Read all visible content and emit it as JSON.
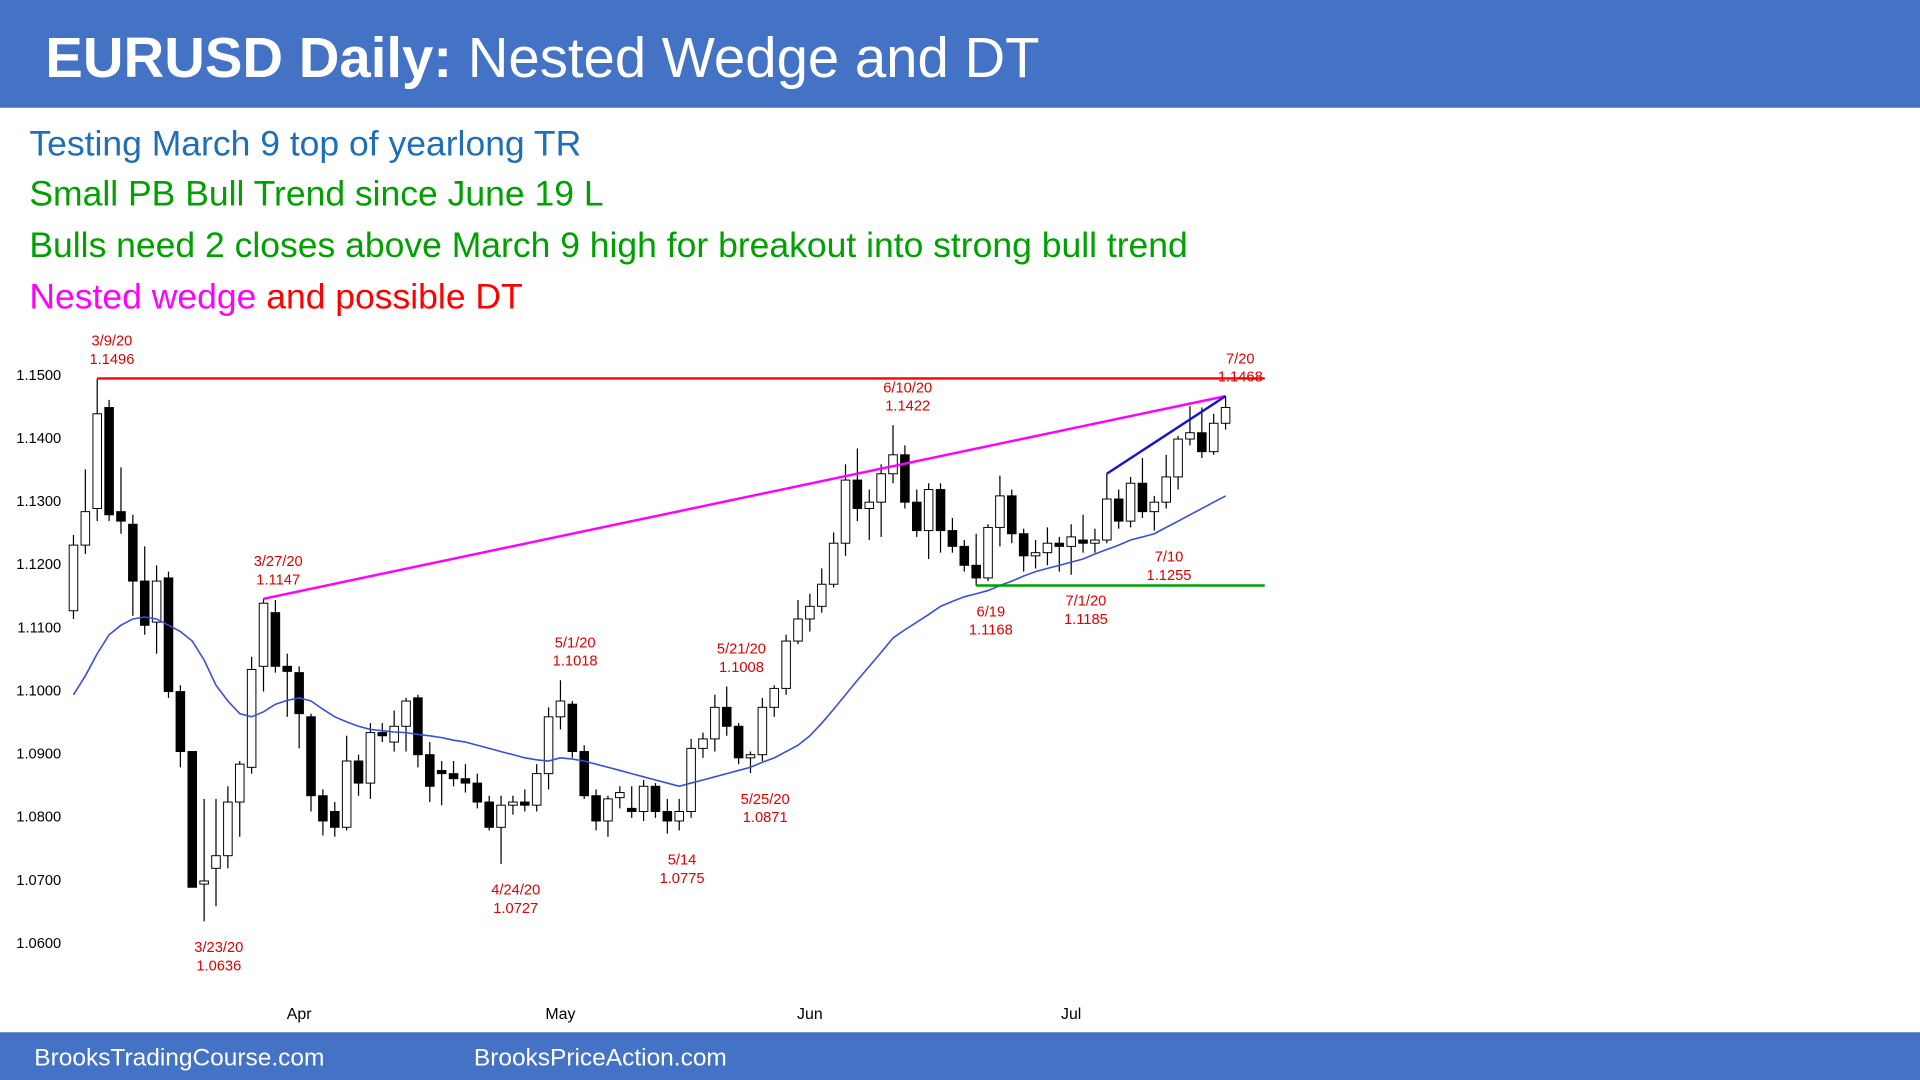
{
  "header": {
    "title_bold": "EURUSD Daily:",
    "title": "Nested Wedge and DT"
  },
  "notes": [
    "Testing March 9 top of yearlong TR",
    "Small PB Bull Trend since June 19 L",
    "Bulls need 2 closes above March 9 high for breakout into strong bull trend",
    {
      "part1": "Nested wedge",
      "part2": "and possible DT"
    }
  ],
  "footer": [
    "BrooksTradingCourse.com",
    "BrooksPriceAction.com"
  ],
  "chart_data": {
    "type": "candlestick",
    "categories": [
      null,
      null,
      null,
      null,
      null,
      null,
      null,
      null,
      null,
      null,
      null,
      null,
      null,
      null,
      null,
      null,
      null,
      null,
      null,
      "Apr",
      null,
      null,
      null,
      null,
      null,
      null,
      null,
      null,
      null,
      null,
      null,
      null,
      null,
      null,
      null,
      null,
      null,
      null,
      null,
      null,
      null,
      "May",
      null,
      null,
      null,
      null,
      null,
      null,
      null,
      null,
      null,
      null,
      null,
      null,
      null,
      null,
      null,
      null,
      null,
      null,
      null,
      null,
      "Jun",
      null,
      null,
      null,
      null,
      null,
      null,
      null,
      null,
      null,
      null,
      null,
      null,
      null,
      null,
      null,
      null,
      null,
      null,
      null,
      null,
      null,
      "Jul",
      null,
      null,
      null,
      null,
      null,
      null,
      null,
      null,
      null,
      null,
      null,
      null,
      null
    ],
    "open": [
      1.1128,
      1.1232,
      1.129,
      1.145,
      1.1285,
      1.1265,
      1.1175,
      1.111,
      1.118,
      1.1,
      1.0905,
      1.0695,
      1.072,
      1.074,
      1.0825,
      1.088,
      1.104,
      1.1125,
      1.104,
      1.103,
      1.096,
      1.0835,
      1.081,
      1.0785,
      1.089,
      1.0855,
      1.0935,
      1.092,
      1.0945,
      1.099,
      1.09,
      1.0875,
      1.087,
      1.0862,
      1.0855,
      1.0825,
      1.0785,
      1.082,
      1.0825,
      1.082,
      1.087,
      1.096,
      1.098,
      1.0905,
      1.0835,
      1.0795,
      1.0832,
      1.0815,
      1.081,
      1.085,
      1.081,
      1.0795,
      1.081,
      1.091,
      1.0925,
      1.0975,
      1.0945,
      1.0895,
      1.09,
      1.0975,
      1.1005,
      1.108,
      1.1115,
      1.1135,
      1.117,
      1.1235,
      1.1335,
      1.129,
      1.13,
      1.1345,
      1.1375,
      1.13,
      1.1255,
      1.132,
      1.1255,
      1.123,
      1.12,
      1.118,
      1.126,
      1.131,
      1.125,
      1.1215,
      1.122,
      1.1235,
      1.123,
      1.124,
      1.1235,
      1.124,
      1.1305,
      1.127,
      1.133,
      1.1285,
      1.13,
      1.134,
      1.14,
      1.141,
      1.138,
      1.1425
    ],
    "high": [
      1.1248,
      1.1352,
      1.1496,
      1.1462,
      1.1355,
      1.128,
      1.123,
      1.12,
      1.119,
      1.101,
      1.0905,
      1.083,
      1.083,
      1.085,
      1.089,
      1.1055,
      1.1147,
      1.1145,
      1.106,
      1.104,
      1.0965,
      1.0845,
      1.0825,
      1.093,
      1.09,
      1.095,
      1.095,
      1.097,
      1.099,
      1.0995,
      1.092,
      1.089,
      1.089,
      1.0885,
      1.087,
      1.0835,
      1.0835,
      1.0835,
      1.0845,
      1.0885,
      1.0975,
      1.1018,
      1.0985,
      1.0915,
      1.0845,
      1.0835,
      1.085,
      1.085,
      1.086,
      1.0855,
      1.083,
      1.083,
      1.0925,
      1.0935,
      1.0995,
      1.1008,
      1.095,
      1.0905,
      1.099,
      1.101,
      1.109,
      1.1145,
      1.1155,
      1.1195,
      1.1252,
      1.136,
      1.1385,
      1.132,
      1.136,
      1.1422,
      1.139,
      1.132,
      1.133,
      1.133,
      1.1275,
      1.124,
      1.125,
      1.1265,
      1.1342,
      1.132,
      1.1258,
      1.124,
      1.126,
      1.1245,
      1.1265,
      1.128,
      1.1258,
      1.1345,
      1.132,
      1.134,
      1.137,
      1.131,
      1.1375,
      1.1405,
      1.1452,
      1.145,
      1.144,
      1.1468
    ],
    "low": [
      1.1115,
      1.1218,
      1.127,
      1.127,
      1.125,
      1.112,
      1.109,
      1.106,
      1.099,
      1.088,
      1.069,
      1.0636,
      1.066,
      1.072,
      1.077,
      1.087,
      1.1,
      1.103,
      1.096,
      1.091,
      1.081,
      1.0772,
      1.077,
      1.078,
      1.0835,
      1.083,
      1.092,
      1.0905,
      1.0905,
      1.088,
      1.0825,
      1.082,
      1.085,
      1.084,
      1.0815,
      1.078,
      1.0727,
      1.0805,
      1.081,
      1.081,
      1.0845,
      1.094,
      1.0895,
      1.083,
      1.078,
      1.077,
      1.0815,
      1.08,
      1.0795,
      1.08,
      1.0775,
      1.078,
      1.08,
      1.0895,
      1.0905,
      1.093,
      1.0885,
      1.0871,
      1.089,
      1.096,
      1.0995,
      1.1075,
      1.1095,
      1.1125,
      1.1165,
      1.1215,
      1.127,
      1.124,
      1.1245,
      1.133,
      1.129,
      1.1245,
      1.121,
      1.122,
      1.122,
      1.119,
      1.1168,
      1.1175,
      1.123,
      1.1235,
      1.119,
      1.1195,
      1.12,
      1.119,
      1.1185,
      1.122,
      1.122,
      1.1235,
      1.1258,
      1.126,
      1.1275,
      1.1255,
      1.129,
      1.132,
      1.139,
      1.137,
      1.1375,
      1.1415
    ],
    "close": [
      1.1232,
      1.1285,
      1.144,
      1.128,
      1.127,
      1.1175,
      1.1105,
      1.1175,
      1.1,
      1.0905,
      1.069,
      1.07,
      1.074,
      1.0825,
      1.0885,
      1.1035,
      1.114,
      1.104,
      1.1032,
      1.0965,
      1.0835,
      1.0795,
      1.0785,
      1.089,
      1.0855,
      1.0935,
      1.093,
      1.0945,
      1.0985,
      1.09,
      1.085,
      1.087,
      1.0862,
      1.0855,
      1.0825,
      1.0785,
      1.082,
      1.0825,
      1.082,
      1.087,
      1.096,
      1.0985,
      1.0905,
      1.0835,
      1.0795,
      1.083,
      1.084,
      1.081,
      1.085,
      1.081,
      1.0795,
      1.081,
      1.091,
      1.0925,
      1.0975,
      1.0945,
      1.0895,
      1.09,
      1.0975,
      1.1005,
      1.108,
      1.1115,
      1.1135,
      1.117,
      1.1235,
      1.1335,
      1.129,
      1.13,
      1.1345,
      1.1375,
      1.13,
      1.1255,
      1.132,
      1.1255,
      1.123,
      1.12,
      1.118,
      1.126,
      1.131,
      1.125,
      1.1215,
      1.122,
      1.1235,
      1.123,
      1.1245,
      1.1235,
      1.124,
      1.1305,
      1.127,
      1.133,
      1.1285,
      1.13,
      1.134,
      1.14,
      1.141,
      1.138,
      1.1425,
      1.145
    ],
    "up_color": "#ffffff",
    "down_color": "#000000",
    "ma": {
      "color": "#3a4fd8",
      "values": [
        1.0995,
        1.1025,
        1.106,
        1.109,
        1.1105,
        1.1115,
        1.1118,
        1.1115,
        1.1105,
        1.1095,
        1.108,
        1.105,
        1.101,
        1.0985,
        1.0965,
        1.096,
        1.0968,
        1.098,
        1.0986,
        1.099,
        1.0985,
        1.0972,
        1.096,
        1.0952,
        1.0945,
        1.094,
        1.0938,
        1.0936,
        1.0935,
        1.0932,
        1.093,
        1.0927,
        1.0923,
        1.092,
        1.0915,
        1.091,
        1.0905,
        1.09,
        1.0895,
        1.0892,
        1.089,
        1.0895,
        1.0893,
        1.089,
        1.0885,
        1.088,
        1.0875,
        1.087,
        1.0865,
        1.086,
        1.0855,
        1.085,
        1.0855,
        1.086,
        1.0865,
        1.087,
        1.0875,
        1.088,
        1.0888,
        1.0895,
        1.0905,
        1.0915,
        1.093,
        1.095,
        1.0972,
        1.0995,
        1.1018,
        1.104,
        1.1062,
        1.1085,
        1.1098,
        1.111,
        1.1122,
        1.1135,
        1.1143,
        1.115,
        1.1155,
        1.116,
        1.1168,
        1.1175,
        1.1183,
        1.119,
        1.1195,
        1.12,
        1.1205,
        1.121,
        1.1218,
        1.1225,
        1.1232,
        1.124,
        1.1245,
        1.125,
        1.126,
        1.127,
        1.128,
        1.129,
        1.13,
        1.131
      ]
    },
    "ylim": [
      1.06,
      1.15
    ],
    "yticks": [
      {
        "value": 1.06,
        "label": "1.0600"
      },
      {
        "value": 1.07,
        "label": "1.0700"
      },
      {
        "value": 1.08,
        "label": "1.0800"
      },
      {
        "value": 1.09,
        "label": "1.0900"
      },
      {
        "value": 1.1,
        "label": "1.1000"
      },
      {
        "value": 1.11,
        "label": "1.1100"
      },
      {
        "value": 1.12,
        "label": "1.1200"
      },
      {
        "value": 1.13,
        "label": "1.1300"
      },
      {
        "value": 1.14,
        "label": "1.1400"
      },
      {
        "value": 1.15,
        "label": "1.1500"
      }
    ],
    "levels": [
      {
        "value": 1.1496,
        "color": "#ff0000"
      },
      {
        "value": 1.1168,
        "color": "#00a000"
      }
    ],
    "trendlines": [
      {
        "values": [
          1.1147,
          1.1468
        ],
        "color": "#ff00ff"
      },
      {
        "values": [
          1.1345,
          1.1468
        ],
        "color": "#1515d0"
      }
    ],
    "annotations": [
      {
        "date": "3/9/20",
        "price": 1.1496
      },
      {
        "date": "3/23/20",
        "price": 1.0636
      },
      {
        "date": "3/27/20",
        "price": 1.1147
      },
      {
        "date": "4/24/20",
        "price": 1.0727
      },
      {
        "date": "5/1/20",
        "price": 1.1018
      },
      {
        "date": "5/14",
        "price": 1.0775
      },
      {
        "date": "5/21/20",
        "price": 1.1008
      },
      {
        "date": "5/25/20",
        "price": 1.0871
      },
      {
        "date": "6/10/20",
        "price": 1.1422
      },
      {
        "date": "6/19",
        "price": 1.1168
      },
      {
        "date": "7/1/20",
        "price": 1.1185
      },
      {
        "date": "7/10",
        "price": 1.1255
      },
      {
        "date": "7/20",
        "price": 1.1468
      }
    ]
  }
}
